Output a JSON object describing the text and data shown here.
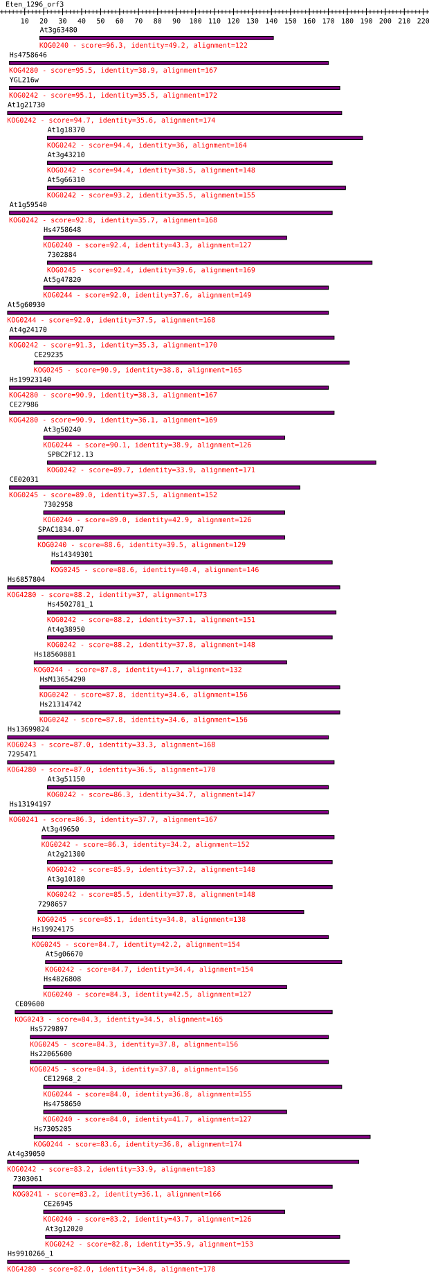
{
  "chart_data": {
    "type": "bar",
    "orientation": "horizontal",
    "title": "Eten_1296_orf3",
    "categories": [
      "At3g63480",
      "Hs4758646",
      "YGL216w",
      "At1g21730",
      "At1g18370",
      "At3g43210",
      "At5g66310",
      "At1g59540",
      "Hs4758648",
      "7302884",
      "At5g47820",
      "At5g60930",
      "At4g24170",
      "CE29235",
      "Hs19923140",
      "CE27986",
      "At3g50240",
      "SPBC2F12.13",
      "CE02031",
      "7302958",
      "SPAC1834.07",
      "Hs14349301",
      "Hs6857804",
      "Hs4502781_1",
      "At4g38950",
      "Hs18560881",
      "HsM13654290",
      "Hs21314742",
      "Hs13699824",
      "7295471",
      "At3g51150",
      "Hs13194197",
      "At3g49650",
      "At2g21300",
      "At3g10180",
      "7298657",
      "Hs19924175",
      "At5g06670",
      "Hs4826808",
      "CE09600",
      "Hs5729897",
      "Hs22065600",
      "CE12968_2",
      "Hs4758650",
      "Hs7305205",
      "At4g39050",
      "7303061",
      "CE26945",
      "At3g12020",
      "Hs9910266_1"
    ],
    "base": [
      18,
      2,
      2,
      1,
      22,
      22,
      22,
      2,
      20,
      22,
      20,
      1,
      2,
      15,
      2,
      2,
      20,
      22,
      2,
      20,
      17,
      24,
      1,
      22,
      22,
      15,
      18,
      18,
      1,
      1,
      22,
      2,
      19,
      22,
      22,
      17,
      14,
      21,
      20,
      5,
      13,
      13,
      20,
      20,
      15,
      1,
      4,
      20,
      21,
      1
    ],
    "values": [
      123,
      168,
      174,
      176,
      166,
      150,
      157,
      170,
      128,
      171,
      150,
      169,
      171,
      166,
      168,
      171,
      127,
      173,
      153,
      127,
      130,
      148,
      175,
      152,
      150,
      133,
      158,
      158,
      169,
      172,
      148,
      168,
      154,
      150,
      150,
      140,
      156,
      156,
      128,
      167,
      157,
      157,
      157,
      128,
      177,
      185,
      168,
      127,
      155,
      180
    ],
    "color": "#800080",
    "value_labels": [
      "KOG0240 - score=96.3, identity=49.2, alignment=122",
      "KOG4280 - score=95.5, identity=38.9, alignment=167",
      "KOG0242 - score=95.1, identity=35.5, alignment=172",
      "KOG0242 - score=94.7, identity=35.6, alignment=174",
      "KOG0242 - score=94.4, identity=36, alignment=164",
      "KOG0242 - score=94.4, identity=38.5, alignment=148",
      "KOG0242 - score=93.2, identity=35.5, alignment=155",
      "KOG0242 - score=92.8, identity=35.7, alignment=168",
      "KOG0240 - score=92.4, identity=43.3, alignment=127",
      "KOG0245 - score=92.4, identity=39.6, alignment=169",
      "KOG0244 - score=92.0, identity=37.6, alignment=149",
      "KOG0244 - score=92.0, identity=37.5, alignment=168",
      "KOG0242 - score=91.3, identity=35.3, alignment=170",
      "KOG0245 - score=90.9, identity=38.8, alignment=165",
      "KOG4280 - score=90.9, identity=38.3, alignment=167",
      "KOG4280 - score=90.9, identity=36.1, alignment=169",
      "KOG0244 - score=90.1, identity=38.9, alignment=126",
      "KOG0242 - score=89.7, identity=33.9, alignment=171",
      "KOG0245 - score=89.0, identity=37.5, alignment=152",
      "KOG0240 - score=89.0, identity=42.9, alignment=126",
      "KOG0240 - score=88.6, identity=39.5, alignment=129",
      "KOG0245 - score=88.6, identity=40.4, alignment=146",
      "KOG4280 - score=88.2, identity=37, alignment=173",
      "KOG0242 - score=88.2, identity=37.1, alignment=151",
      "KOG0242 - score=88.2, identity=37.8, alignment=148",
      "KOG0244 - score=87.8, identity=41.7, alignment=132",
      "KOG0242 - score=87.8, identity=34.6, alignment=156",
      "KOG0242 - score=87.8, identity=34.6, alignment=156",
      "KOG0243 - score=87.0, identity=33.3, alignment=168",
      "KOG4280 - score=87.0, identity=36.5, alignment=170",
      "KOG0242 - score=86.3, identity=34.7, alignment=147",
      "KOG0241 - score=86.3, identity=37.7, alignment=167",
      "KOG0242 - score=86.3, identity=34.2, alignment=152",
      "KOG0242 - score=85.9, identity=37.2, alignment=148",
      "KOG0242 - score=85.5, identity=37.8, alignment=148",
      "KOG0245 - score=85.1, identity=34.8, alignment=138",
      "KOG0245 - score=84.7, identity=42.2, alignment=154",
      "KOG0242 - score=84.7, identity=34.4, alignment=154",
      "KOG0240 - score=84.3, identity=42.5, alignment=127",
      "KOG0243 - score=84.3, identity=34.5, alignment=165",
      "KOG0245 - score=84.3, identity=37.8, alignment=156",
      "KOG0245 - score=84.3, identity=37.8, alignment=156",
      "KOG0244 - score=84.0, identity=36.8, alignment=155",
      "KOG0240 - score=84.0, identity=41.7, alignment=127",
      "KOG0244 - score=83.6, identity=36.8, alignment=174",
      "KOG0242 - score=83.2, identity=33.9, alignment=183",
      "KOG0241 - score=83.2, identity=36.1, alignment=166",
      "KOG0240 - score=83.2, identity=43.7, alignment=126",
      "KOG0242 - score=82.8, identity=35.9, alignment=153",
      "KOG4280 - score=82.0, identity=34.8, alignment=178"
    ],
    "xlim": [
      -3,
      223
    ],
    "xticks": [
      10,
      20,
      30,
      40,
      50,
      60,
      70,
      80,
      90,
      100,
      110,
      120,
      130,
      140,
      150,
      160,
      170,
      180,
      190,
      200,
      210,
      220
    ],
    "tick_labels": "x",
    "grid": false
  }
}
